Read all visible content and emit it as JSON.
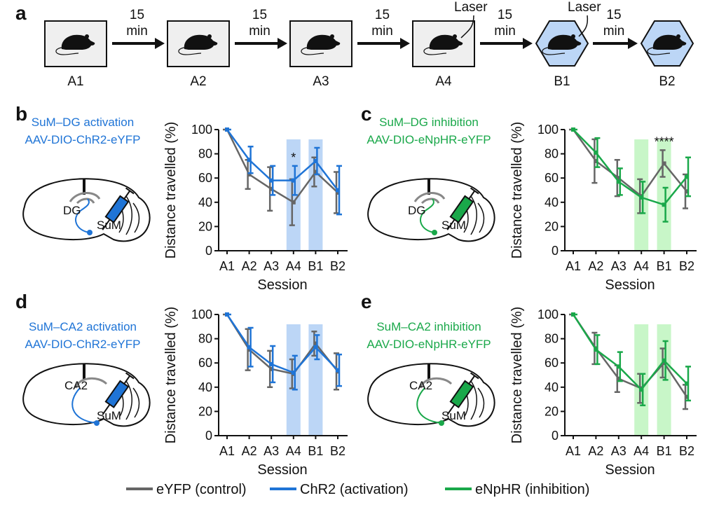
{
  "panel_labels": [
    "a",
    "b",
    "c",
    "d",
    "e"
  ],
  "protocol": {
    "sessions": [
      "A1",
      "A2",
      "A3",
      "A4",
      "B1",
      "B2"
    ],
    "intervals": [
      [
        "15",
        "min"
      ],
      [
        "15",
        "min"
      ],
      [
        "15",
        "min"
      ],
      [
        "15",
        "min"
      ],
      [
        "15",
        "min"
      ]
    ],
    "laser": [
      "Laser",
      "Laser"
    ]
  },
  "constructs": [
    {
      "title": "SuM–DG activation",
      "virus": "AAV-DIO-ChR2-eYFP",
      "target": "DG",
      "source": "SuM"
    },
    {
      "title": "SuM–DG inhibition",
      "virus": "AAV-DIO-eNpHR-eYFP",
      "target": "DG",
      "source": "SuM"
    },
    {
      "title": "SuM–CA2 activation",
      "virus": "AAV-DIO-ChR2-eYFP",
      "target": "CA2",
      "source": "SuM"
    },
    {
      "title": "SuM–CA2 inhibition",
      "virus": "AAV-DIO-eNpHR-eYFP",
      "target": "CA2",
      "source": "SuM"
    }
  ],
  "legend": [
    {
      "name": "eYFP (control)",
      "color": "#666666"
    },
    {
      "name": "ChR2 (activation)",
      "color": "#1f74d6"
    },
    {
      "name": "eNpHR (inhibition)",
      "color": "#1aa84a"
    }
  ],
  "chart_data": [
    {
      "type": "line",
      "categories": [
        "A1",
        "A2",
        "A3",
        "A4",
        "B1",
        "B2"
      ],
      "x_label": "Session",
      "y_label": "Distance travelled (%)",
      "ylim": [
        0,
        100
      ],
      "yticks": [
        0,
        20,
        40,
        60,
        80,
        100
      ],
      "shaded": [
        3,
        4
      ],
      "shade_color": "#bcd6f6",
      "annotations": [
        {
          "text": "*",
          "category": 3
        }
      ],
      "series": [
        {
          "legend": 0,
          "values": [
            100,
            63,
            51,
            40,
            65,
            48
          ],
          "errors": [
            0,
            12,
            18,
            19,
            12,
            17
          ]
        },
        {
          "legend": 1,
          "values": [
            100,
            75,
            58,
            58,
            74,
            50
          ],
          "errors": [
            0,
            11,
            12,
            12,
            11,
            20
          ]
        }
      ]
    },
    {
      "type": "line",
      "categories": [
        "A1",
        "A2",
        "A3",
        "A4",
        "B1",
        "B2"
      ],
      "x_label": "Session",
      "y_label": "Distance travelled (%)",
      "ylim": [
        0,
        100
      ],
      "yticks": [
        0,
        20,
        40,
        60,
        80,
        100
      ],
      "shaded": [
        3,
        4
      ],
      "shade_color": "#c8f6c8",
      "annotations": [
        {
          "text": "****",
          "category": 4
        }
      ],
      "series": [
        {
          "legend": 0,
          "values": [
            100,
            74,
            60,
            45,
            72,
            49
          ],
          "errors": [
            0,
            18,
            15,
            14,
            11,
            14
          ]
        },
        {
          "legend": 2,
          "values": [
            100,
            81,
            57,
            44,
            38,
            61
          ],
          "errors": [
            0,
            12,
            11,
            13,
            14,
            16
          ]
        }
      ]
    },
    {
      "type": "line",
      "categories": [
        "A1",
        "A2",
        "A3",
        "A4",
        "B1",
        "B2"
      ],
      "x_label": "Session",
      "y_label": "Distance travelled (%)",
      "ylim": [
        0,
        100
      ],
      "yticks": [
        0,
        20,
        40,
        60,
        80,
        100
      ],
      "shaded": [
        3,
        4
      ],
      "shade_color": "#bcd6f6",
      "annotations": [],
      "series": [
        {
          "legend": 0,
          "values": [
            100,
            71,
            55,
            51,
            76,
            53
          ],
          "errors": [
            0,
            17,
            15,
            12,
            10,
            15
          ]
        },
        {
          "legend": 1,
          "values": [
            100,
            73,
            59,
            52,
            73,
            54
          ],
          "errors": [
            0,
            16,
            15,
            14,
            10,
            13
          ]
        }
      ]
    },
    {
      "type": "line",
      "categories": [
        "A1",
        "A2",
        "A3",
        "A4",
        "B1",
        "B2"
      ],
      "x_label": "Session",
      "y_label": "Distance travelled (%)",
      "ylim": [
        0,
        100
      ],
      "yticks": [
        0,
        20,
        40,
        60,
        80,
        100
      ],
      "shaded": [
        3,
        4
      ],
      "shade_color": "#c8f6c8",
      "annotations": [],
      "series": [
        {
          "legend": 0,
          "values": [
            100,
            72,
            47,
            39,
            60,
            32
          ],
          "errors": [
            0,
            13,
            11,
            12,
            12,
            10
          ]
        },
        {
          "legend": 2,
          "values": [
            100,
            71,
            57,
            38,
            62,
            43
          ],
          "errors": [
            0,
            12,
            12,
            13,
            16,
            14
          ]
        }
      ]
    }
  ]
}
